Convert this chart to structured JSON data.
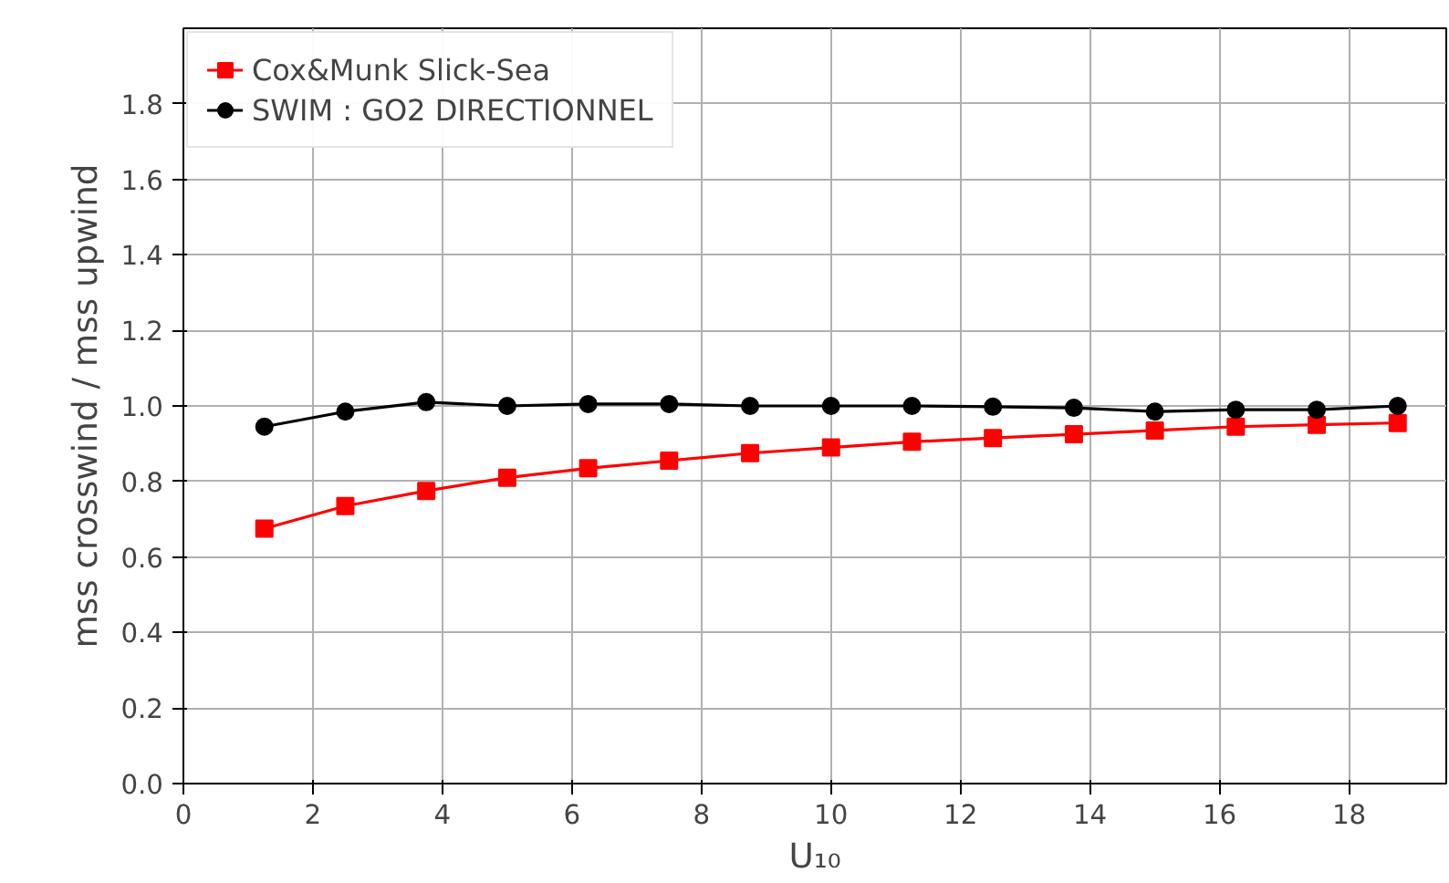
{
  "chart_data": {
    "type": "line",
    "xlabel": "U₁₀",
    "ylabel": "mss crosswind / mss upwind",
    "x": [
      1.25,
      2.5,
      3.75,
      5,
      6.25,
      7.5,
      8.75,
      10,
      11.25,
      12.5,
      13.75,
      15,
      16.25,
      17.5,
      18.75
    ],
    "series": [
      {
        "name": "Cox&Munk Slick-Sea",
        "color": "#ff0000",
        "marker": "square",
        "values": [
          0.675,
          0.735,
          0.775,
          0.81,
          0.835,
          0.855,
          0.875,
          0.89,
          0.905,
          0.915,
          0.925,
          0.935,
          0.945,
          0.95,
          0.955
        ]
      },
      {
        "name": "SWIM : GO2 DIRECTIONNEL",
        "color": "#000000",
        "marker": "circle",
        "values": [
          0.945,
          0.985,
          1.01,
          1.0,
          1.005,
          1.005,
          1.0,
          1.0,
          1.0,
          0.998,
          0.995,
          0.985,
          0.99,
          0.99,
          1.0
        ]
      }
    ],
    "xlim": [
      0,
      19.5
    ],
    "xticks": [
      0,
      2,
      4,
      6,
      8,
      10,
      12,
      14,
      16,
      18
    ],
    "ylim": [
      0,
      2.0
    ],
    "yticks": [
      {
        "value": 0,
        "label": "0.0"
      },
      0.2,
      0.4,
      0.6,
      0.8,
      {
        "value": 1,
        "label": "1.0"
      },
      1.2,
      1.4,
      1.6,
      1.8
    ],
    "grid": true,
    "legend": "top left",
    "line_style": "solid"
  }
}
